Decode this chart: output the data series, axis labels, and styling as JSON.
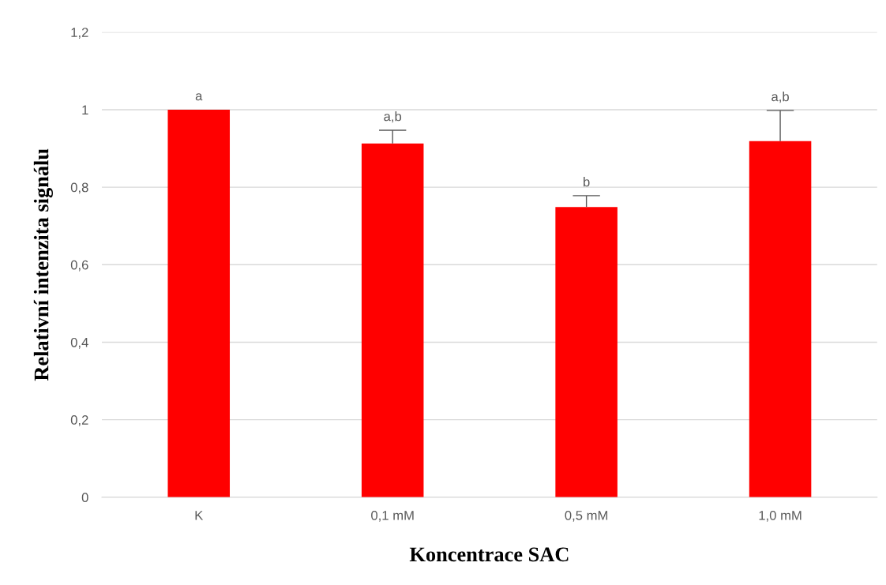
{
  "chart_data": {
    "type": "bar",
    "xlabel": "Koncentrace SAC",
    "ylabel": "Relativní intenzita signálu",
    "categories": [
      "K",
      "0,1 mM",
      "0,5 mM",
      "1,0 mM"
    ],
    "values": [
      1.0,
      0.913,
      0.749,
      0.919
    ],
    "color": "#ff0000",
    "errors": [
      null,
      [
        0.913,
        0.947
      ],
      [
        0.749,
        0.778
      ],
      [
        0.919,
        0.998
      ]
    ],
    "ylim": [
      0,
      1.2
    ],
    "yticks": [
      {
        "value": 0,
        "label": "0"
      },
      {
        "value": 0.2,
        "label": "0,2"
      },
      {
        "value": 0.4,
        "label": "0,4"
      },
      {
        "value": 0.6,
        "label": "0,6"
      },
      {
        "value": 0.8,
        "label": "0,8"
      },
      {
        "value": 1,
        "label": "1"
      },
      {
        "value": 1.2,
        "label": "1,2"
      }
    ],
    "grid": "y",
    "annotations": [
      {
        "text": "a",
        "x": "K",
        "y": 1.0
      },
      {
        "text": "a,b",
        "x": "0,1 mM",
        "y": 0.947
      },
      {
        "text": "b",
        "x": "0,5 mM",
        "y": 0.778
      },
      {
        "text": "a,b",
        "x": "1,0 mM",
        "y": 0.998
      }
    ]
  }
}
